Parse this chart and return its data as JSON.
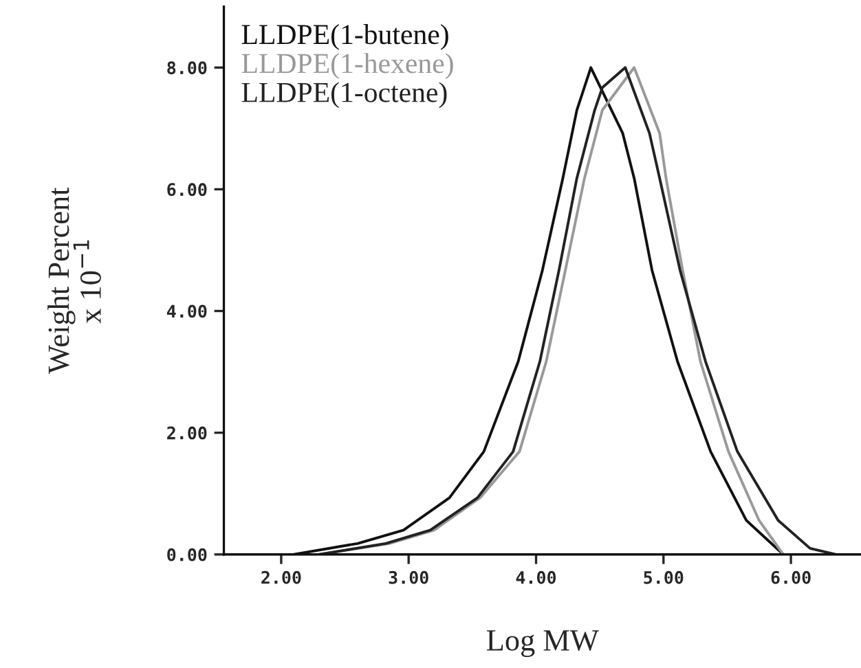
{
  "chart_data": {
    "type": "line",
    "xlabel": "Log MW",
    "ylabel": "Weight Percent\nx 10$^{−1}$",
    "xlim": [
      1.55,
      6.55
    ],
    "ylim": [
      0,
      9
    ],
    "xticks": [
      {
        "value": 2,
        "label": "2.00"
      },
      {
        "value": 3,
        "label": "3.00"
      },
      {
        "value": 4,
        "label": "4.00"
      },
      {
        "value": 5,
        "label": "5.00"
      },
      {
        "value": 6,
        "label": "6.00"
      }
    ],
    "yticks": [
      {
        "value": 0,
        "label": "0.00"
      },
      {
        "value": 2,
        "label": "2.00"
      },
      {
        "value": 4,
        "label": "4.00"
      },
      {
        "value": 6,
        "label": "6.00"
      },
      {
        "value": 8,
        "label": "8.00"
      }
    ],
    "legend": "top left",
    "grid": false,
    "marker": "none",
    "line_style": "solid",
    "series": [
      {
        "name": "LLDPE(1-butene)",
        "color": "#111111",
        "x": [
          2.1,
          2.6,
          2.96,
          3.32,
          3.59,
          3.86,
          4.05,
          4.21,
          4.32,
          4.43,
          4.68,
          4.77,
          4.91,
          5.11,
          5.37,
          5.65,
          5.94
        ],
        "values": [
          0,
          0.18,
          0.4,
          0.93,
          1.69,
          3.17,
          4.67,
          6.18,
          7.3,
          8.0,
          6.92,
          6.18,
          4.67,
          3.17,
          1.69,
          0.56,
          0
        ]
      },
      {
        "name": "LLDPE(1-hexene)",
        "color": "#999999",
        "x": [
          2.3,
          2.85,
          3.2,
          3.56,
          3.87,
          4.08,
          4.23,
          4.38,
          4.52,
          4.77,
          4.97,
          5.02,
          5.15,
          5.29,
          5.51,
          5.75,
          5.94
        ],
        "values": [
          0,
          0.18,
          0.4,
          0.93,
          1.69,
          3.17,
          4.67,
          6.18,
          7.3,
          8.0,
          6.92,
          6.18,
          4.67,
          3.17,
          1.69,
          0.56,
          0
        ]
      },
      {
        "name": "LLDPE(1-octene)",
        "color": "#222222",
        "x": [
          2.3,
          2.82,
          3.17,
          3.54,
          3.82,
          4.03,
          4.18,
          4.32,
          4.46,
          4.52,
          4.7,
          4.89,
          4.97,
          5.13,
          5.33,
          5.58,
          5.9,
          6.15,
          6.35
        ],
        "values": [
          0,
          0.18,
          0.4,
          0.93,
          1.69,
          3.17,
          4.67,
          6.18,
          7.3,
          7.67,
          8.0,
          6.92,
          6.18,
          4.67,
          3.17,
          1.69,
          0.56,
          0.1,
          0
        ]
      }
    ]
  }
}
